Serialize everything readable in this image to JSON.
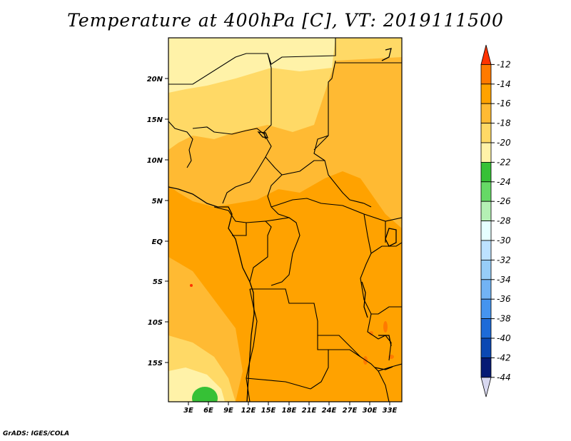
{
  "title": "Temperature at 400hPa [C], VT: 2019111500",
  "credit": "GrADS: IGES/COLA",
  "map": {
    "lat_labels": [
      "20N",
      "15N",
      "10N",
      "5N",
      "EQ",
      "5S",
      "10S",
      "15S"
    ],
    "lon_labels": [
      "3E",
      "6E",
      "9E",
      "12E",
      "15E",
      "18E",
      "21E",
      "24E",
      "27E",
      "30E",
      "33E"
    ]
  },
  "colorbar": {
    "labels": [
      "-12",
      "-14",
      "-16",
      "-18",
      "-20",
      "-22",
      "-24",
      "-26",
      "-28",
      "-30",
      "-32",
      "-34",
      "-36",
      "-38",
      "-40",
      "-42",
      "-44"
    ],
    "colors": [
      "#ff3300",
      "#ff7a00",
      "#ffa200",
      "#ffba33",
      "#ffd966",
      "#fff2a8",
      "#36c136",
      "#66d966",
      "#b4f0b4",
      "#e6ffff",
      "#bde2ff",
      "#97cdf7",
      "#72b3f4",
      "#4594ef",
      "#1e6bd8",
      "#0b48b3",
      "#061a74",
      "#d8d8f0"
    ]
  }
}
